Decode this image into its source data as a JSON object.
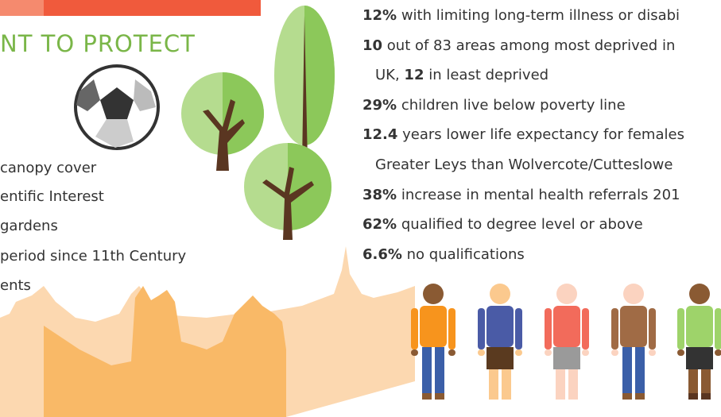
{
  "heading": "NT TO PROTECT",
  "left_items": [
    "canopy cover",
    "entific Interest",
    "gardens",
    "period since 11th Century",
    "ents"
  ],
  "stats": [
    {
      "lines": [
        [
          {
            "text": "12%",
            "bold": true
          },
          {
            "text": " with limiting long-term illness or disabi",
            "bold": false
          }
        ]
      ]
    },
    {
      "lines": [
        [
          {
            "text": "10",
            "bold": true
          },
          {
            "text": " out of 83 areas among most deprived in",
            "bold": false
          }
        ],
        [
          {
            "text": "UK, ",
            "bold": false
          },
          {
            "text": "12",
            "bold": true
          },
          {
            "text": " in least deprived",
            "bold": false
          }
        ]
      ]
    },
    {
      "lines": [
        [
          {
            "text": "29%",
            "bold": true
          },
          {
            "text": " children live below poverty line",
            "bold": false
          }
        ]
      ]
    },
    {
      "lines": [
        [
          {
            "text": "12.4",
            "bold": true
          },
          {
            "text": " years lower life expectancy for females",
            "bold": false
          }
        ],
        [
          {
            "text": "Greater Leys than Wolvercote/Cutteslowe",
            "bold": false
          }
        ]
      ]
    },
    {
      "lines": [
        [
          {
            "text": "38%",
            "bold": true
          },
          {
            "text": " increase in mental health referrals 201",
            "bold": false
          }
        ]
      ]
    },
    {
      "lines": [
        [
          {
            "text": "62%",
            "bold": true
          },
          {
            "text": " qualified to degree level or above",
            "bold": false
          }
        ]
      ]
    },
    {
      "lines": [
        [
          {
            "text": "6.6%",
            "bold": true
          },
          {
            "text": " no qualifications",
            "bold": false
          }
        ]
      ]
    }
  ]
}
